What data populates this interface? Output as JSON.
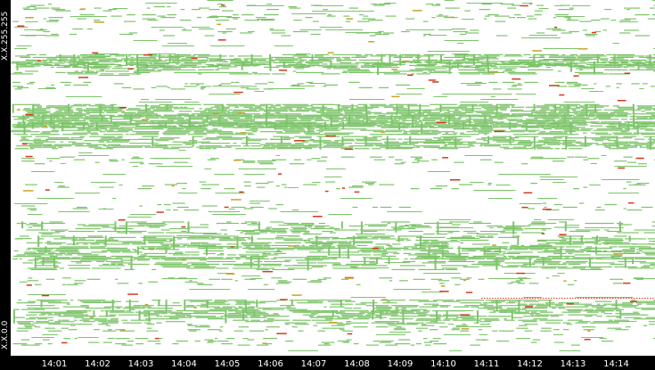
{
  "chart_data": {
    "type": "heatmap",
    "title": "",
    "xlabel": "",
    "ylabel": "",
    "y_top_label": "X.X.255.255",
    "y_bottom_label": "X.X.0.0",
    "x_ticks": [
      "14:01",
      "14:02",
      "14:03",
      "14:04",
      "14:05",
      "14:06",
      "14:07",
      "14:08",
      "14:09",
      "14:10",
      "14:11",
      "14:12",
      "14:13",
      "14:14"
    ],
    "colors": {
      "low": "#7dc46a",
      "medium": "#c9a227",
      "high": "#d23a1e",
      "background": "#ffffff",
      "frame": "#000000"
    },
    "bands": [
      {
        "y": 0.02,
        "density": 0.25,
        "kind": "sparse"
      },
      {
        "y": 0.05,
        "density": 0.35,
        "kind": "sparse"
      },
      {
        "y": 0.09,
        "density": 0.3,
        "kind": "sparse"
      },
      {
        "y": 0.17,
        "density": 0.7,
        "kind": "dense"
      },
      {
        "y": 0.19,
        "density": 0.55,
        "kind": "dense"
      },
      {
        "y": 0.24,
        "density": 0.3,
        "kind": "sparse"
      },
      {
        "y": 0.31,
        "density": 0.8,
        "kind": "dense"
      },
      {
        "y": 0.34,
        "density": 0.85,
        "kind": "dense"
      },
      {
        "y": 0.36,
        "density": 0.75,
        "kind": "dense"
      },
      {
        "y": 0.4,
        "density": 0.6,
        "kind": "dense"
      },
      {
        "y": 0.45,
        "density": 0.25,
        "kind": "sparse"
      },
      {
        "y": 0.52,
        "density": 0.2,
        "kind": "sparse"
      },
      {
        "y": 0.58,
        "density": 0.2,
        "kind": "sparse"
      },
      {
        "y": 0.64,
        "density": 0.45,
        "kind": "dense"
      },
      {
        "y": 0.68,
        "density": 0.55,
        "kind": "dense"
      },
      {
        "y": 0.71,
        "density": 0.6,
        "kind": "dense"
      },
      {
        "y": 0.74,
        "density": 0.45,
        "kind": "dense"
      },
      {
        "y": 0.79,
        "density": 0.25,
        "kind": "sparse"
      },
      {
        "y": 0.86,
        "density": 0.55,
        "kind": "dense"
      },
      {
        "y": 0.89,
        "density": 0.6,
        "kind": "dense"
      },
      {
        "y": 0.92,
        "density": 0.35,
        "kind": "sparse"
      },
      {
        "y": 0.96,
        "density": 0.3,
        "kind": "sparse"
      }
    ]
  }
}
